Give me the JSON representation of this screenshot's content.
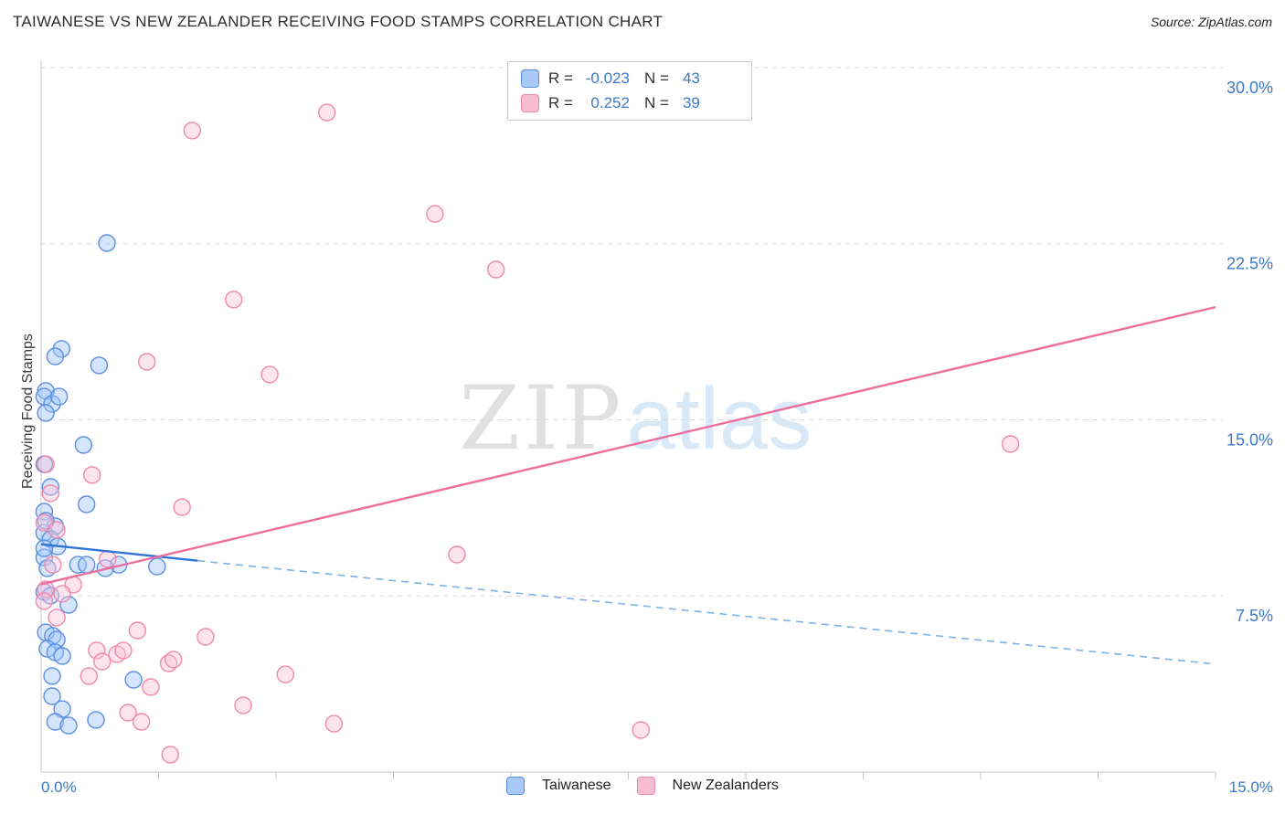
{
  "title": "TAIWANESE VS NEW ZEALANDER RECEIVING FOOD STAMPS CORRELATION CHART",
  "source": "Source: ZipAtlas.com",
  "y_axis_label": "Receiving Food Stamps",
  "watermark": {
    "part1": "ZIP",
    "part2": "atlas"
  },
  "style": {
    "tick_label_color": "#3d79c8",
    "grid_color": "#d9d9d9",
    "axis_color": "#c4c4c4",
    "title_color": "#2d2d2d"
  },
  "legend_box": {
    "rows": [
      {
        "r_label": "R =",
        "r_value": "-0.023",
        "n_label": "N =",
        "n_value": "43"
      },
      {
        "r_label": "R =",
        "r_value": "0.252",
        "n_label": "N =",
        "n_value": "39"
      }
    ]
  },
  "bottom_legend": [
    {
      "label": "Taiwanese"
    },
    {
      "label": "New Zealanders"
    }
  ],
  "chart_data": {
    "type": "scatter",
    "title": "TAIWANESE VS NEW ZEALANDER RECEIVING FOOD STAMPS CORRELATION CHART",
    "xlabel": "",
    "ylabel": "Receiving Food Stamps",
    "xlim": [
      0,
      15
    ],
    "ylim": [
      0,
      30.35
    ],
    "x_tick_labels": [
      "0.0%",
      "15.0%"
    ],
    "y_tick_labels": [
      "30.0%",
      "22.5%",
      "15.0%",
      "7.5%"
    ],
    "y_gridlines": [
      30,
      22.5,
      15,
      7.5
    ],
    "grid": true,
    "legend_position": "top-center",
    "series": [
      {
        "key": "taiwanese",
        "name": "Taiwanese",
        "R": -0.023,
        "N": 43,
        "stroke": "#5b8fe0",
        "fill": "rgba(160,198,250,0.45)",
        "swatch_fill": "#a9c9f7",
        "line_color": "#2e75d6",
        "dash_color": "#7fb0e8",
        "trend": {
          "solid": [
            [
              0,
              9.7
            ],
            [
              2,
              9.0
            ]
          ],
          "dashed": [
            [
              2,
              9.0
            ],
            [
              15,
              4.6
            ]
          ]
        },
        "points": [
          [
            0.84,
            22.53
          ],
          [
            0.26,
            18.02
          ],
          [
            0.18,
            17.7
          ],
          [
            0.74,
            17.32
          ],
          [
            0.06,
            16.23
          ],
          [
            0.04,
            15.99
          ],
          [
            0.14,
            15.68
          ],
          [
            0.23,
            15.99
          ],
          [
            0.06,
            15.29
          ],
          [
            0.54,
            13.93
          ],
          [
            0.04,
            13.11
          ],
          [
            0.12,
            12.14
          ],
          [
            0.58,
            11.4
          ],
          [
            0.04,
            11.09
          ],
          [
            0.18,
            10.47
          ],
          [
            0.04,
            10.19
          ],
          [
            0.12,
            9.92
          ],
          [
            0.21,
            9.61
          ],
          [
            0.04,
            9.14
          ],
          [
            0.47,
            8.83
          ],
          [
            0.58,
            8.83
          ],
          [
            0.99,
            8.83
          ],
          [
            1.48,
            8.75
          ],
          [
            0.82,
            8.68
          ],
          [
            0.04,
            7.67
          ],
          [
            0.12,
            7.51
          ],
          [
            0.35,
            7.12
          ],
          [
            0.06,
            5.95
          ],
          [
            0.15,
            5.8
          ],
          [
            0.2,
            5.64
          ],
          [
            0.08,
            5.25
          ],
          [
            0.18,
            5.1
          ],
          [
            0.27,
            4.94
          ],
          [
            0.14,
            4.09
          ],
          [
            1.18,
            3.93
          ],
          [
            0.14,
            3.23
          ],
          [
            0.27,
            2.68
          ],
          [
            0.18,
            2.14
          ],
          [
            0.35,
            1.98
          ],
          [
            0.7,
            2.22
          ],
          [
            0.04,
            9.53
          ],
          [
            0.08,
            8.68
          ],
          [
            0.06,
            10.7
          ]
        ]
      },
      {
        "key": "new_zealanders",
        "name": "New Zealanders",
        "R": 0.252,
        "N": 39,
        "stroke": "#ef88ab",
        "fill": "rgba(250,195,215,0.45)",
        "swatch_fill": "#f9bdd2",
        "line_color": "#ed6d9d",
        "trend": {
          "solid": [
            [
              0,
              8.0
            ],
            [
              15,
              19.8
            ]
          ]
        },
        "points": [
          [
            3.65,
            28.09
          ],
          [
            1.93,
            27.32
          ],
          [
            5.03,
            23.77
          ],
          [
            5.81,
            21.4
          ],
          [
            2.46,
            20.12
          ],
          [
            1.35,
            17.47
          ],
          [
            2.92,
            16.93
          ],
          [
            12.38,
            13.97
          ],
          [
            0.06,
            13.11
          ],
          [
            0.65,
            12.65
          ],
          [
            0.12,
            11.87
          ],
          [
            1.8,
            11.28
          ],
          [
            0.04,
            10.62
          ],
          [
            0.2,
            10.31
          ],
          [
            5.31,
            9.26
          ],
          [
            0.85,
            9.07
          ],
          [
            0.15,
            8.83
          ],
          [
            0.41,
            7.98
          ],
          [
            0.06,
            7.78
          ],
          [
            0.27,
            7.59
          ],
          [
            0.04,
            7.28
          ],
          [
            0.2,
            6.58
          ],
          [
            1.23,
            6.03
          ],
          [
            2.1,
            5.76
          ],
          [
            0.71,
            5.18
          ],
          [
            0.97,
            5.02
          ],
          [
            1.05,
            5.18
          ],
          [
            0.78,
            4.71
          ],
          [
            1.63,
            4.63
          ],
          [
            1.69,
            4.79
          ],
          [
            0.61,
            4.09
          ],
          [
            1.4,
            3.62
          ],
          [
            3.12,
            4.16
          ],
          [
            1.11,
            2.53
          ],
          [
            2.58,
            2.84
          ],
          [
            3.74,
            2.06
          ],
          [
            7.66,
            1.79
          ],
          [
            1.28,
            2.14
          ],
          [
            1.65,
            0.74
          ]
        ]
      }
    ]
  }
}
